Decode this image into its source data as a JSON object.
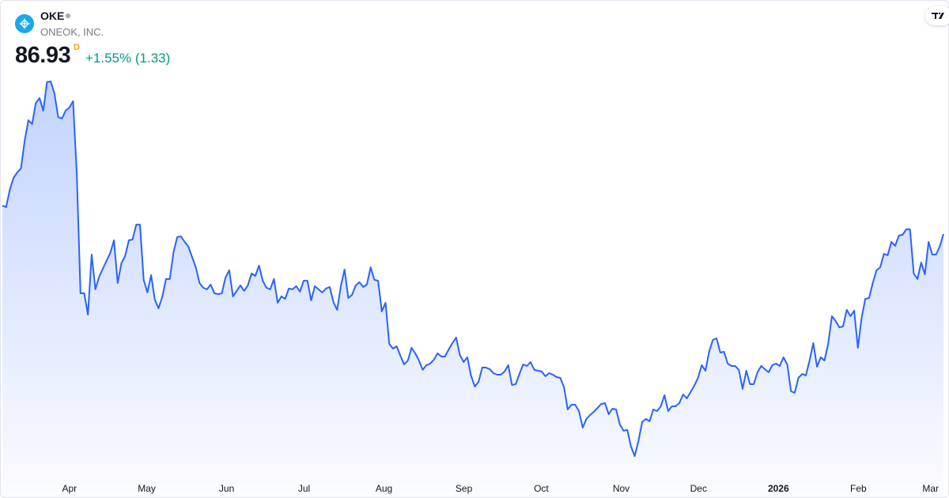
{
  "header": {
    "symbol": "OKE",
    "company": "ONEOK, INC.",
    "price": "86.93",
    "resolution": "D",
    "change": "+1.55% (1.33)",
    "status_dot": "market-status-dot",
    "logo_icon": "oneok-logo-icon",
    "brand_icon": "tradingview-logo-icon"
  },
  "colors": {
    "line": "#2962ff",
    "change_positive": "#089981",
    "resolution_badge": "#f7a600",
    "logo": "#1aa8ea"
  },
  "chart_data": {
    "type": "area",
    "title": "",
    "xlabel": "",
    "ylabel": "",
    "grid": false,
    "y_axis_visible": false,
    "x_start": "2025-03-06",
    "x_end": "2026-03-06",
    "x_ticks": [
      {
        "label": "Apr",
        "date": "2025-04-01",
        "bold": false
      },
      {
        "label": "May",
        "date": "2025-05-01",
        "bold": false
      },
      {
        "label": "Jun",
        "date": "2025-06-01",
        "bold": false
      },
      {
        "label": "Jul",
        "date": "2025-07-01",
        "bold": false
      },
      {
        "label": "Aug",
        "date": "2025-08-01",
        "bold": false
      },
      {
        "label": "Sep",
        "date": "2025-09-01",
        "bold": false
      },
      {
        "label": "Oct",
        "date": "2025-10-01",
        "bold": false
      },
      {
        "label": "Nov",
        "date": "2025-11-01",
        "bold": false
      },
      {
        "label": "Dec",
        "date": "2025-12-01",
        "bold": false
      },
      {
        "label": "2026",
        "date": "2026-01-01",
        "bold": true
      },
      {
        "label": "Feb",
        "date": "2026-02-01",
        "bold": false
      },
      {
        "label": "Mar",
        "date": "2026-03-01",
        "bold": false
      }
    ],
    "values": [
      89.75,
      89.6,
      91.32,
      92.49,
      93.04,
      93.43,
      96.17,
      98.21,
      97.82,
      99.93,
      100.4,
      99.15,
      101.97,
      102.05,
      100.87,
      98.52,
      98.37,
      99.15,
      99.46,
      100.09,
      92.88,
      81.06,
      81.06,
      78.95,
      84.9,
      81.45,
      82.7,
      83.49,
      84.27,
      85.05,
      86.31,
      82.08,
      84.04,
      84.74,
      86.31,
      86.39,
      87.87,
      87.87,
      82.39,
      81.14,
      82.86,
      80.43,
      79.57,
      80.75,
      82.47,
      82.47,
      85.13,
      86.62,
      86.7,
      86.15,
      85.68,
      84.66,
      83.64,
      82.08,
      81.61,
      81.45,
      81.92,
      81.06,
      80.98,
      81.06,
      82.63,
      83.33,
      80.75,
      81.29,
      81.84,
      81.29,
      81.84,
      83.02,
      82.78,
      83.8,
      82.31,
      81.61,
      81.45,
      82.47,
      80.12,
      80.75,
      80.51,
      81.53,
      81.45,
      81.77,
      81.22,
      82.31,
      82.31,
      80.36,
      81.77,
      81.45,
      81.14,
      81.53,
      81.69,
      80.2,
      79.42,
      81.77,
      83.41,
      80.59,
      80.9,
      81.84,
      82.16,
      81.69,
      81.92,
      83.64,
      82.39,
      82.31,
      79.26,
      80.12,
      76.05,
      75.58,
      75.81,
      74.87,
      74.01,
      74.4,
      75.66,
      75.11,
      74.4,
      73.47,
      73.94,
      74.09,
      74.48,
      75.11,
      74.8,
      74.8,
      75.5,
      76.13,
      76.68,
      74.95,
      74.25,
      74.72,
      72.92,
      71.82,
      72.29,
      73.7,
      73.7,
      73.54,
      73.15,
      73.0,
      73.0,
      73.31,
      73.94,
      71.98,
      72.06,
      73.07,
      74.01,
      73.86,
      74.25,
      73.47,
      73.39,
      73.31,
      72.84,
      73.15,
      73.0,
      72.76,
      72.68,
      71.74,
      69.55,
      70.02,
      70.02,
      69.39,
      67.75,
      68.61,
      69.0,
      69.32,
      69.71,
      70.1,
      70.18,
      69.08,
      69.63,
      69.55,
      68.06,
      67.44,
      67.52,
      65.87,
      64.93,
      66.42,
      68.3,
      68.61,
      68.38,
      69.55,
      69.39,
      69.86,
      70.96,
      69.39,
      69.86,
      69.86,
      70.18,
      71.04,
      70.65,
      71.27,
      71.9,
      72.68,
      73.94,
      73.39,
      75.27,
      76.44,
      76.6,
      75.19,
      75.27,
      74.09,
      73.86,
      73.86,
      73.47,
      71.59,
      73.39,
      72.06,
      72.06,
      73.23,
      73.86,
      73.54,
      73.23,
      73.94,
      74.09,
      73.86,
      74.72,
      74.01,
      71.35,
      71.2,
      72.68,
      73.07,
      72.92,
      74.4,
      76.13,
      73.78,
      74.72,
      74.4,
      76.05,
      78.79,
      78.32,
      77.69,
      77.77,
      79.42,
      78.79,
      79.34,
      75.66,
      78.63,
      80.51,
      80.59,
      82.08,
      83.33,
      83.64,
      84.97,
      84.82,
      86.15,
      85.76,
      86.78,
      86.85,
      87.4,
      87.4,
      83.02,
      82.47,
      84.11,
      82.94,
      86.15,
      84.9,
      84.9,
      85.68,
      86.93
    ]
  }
}
